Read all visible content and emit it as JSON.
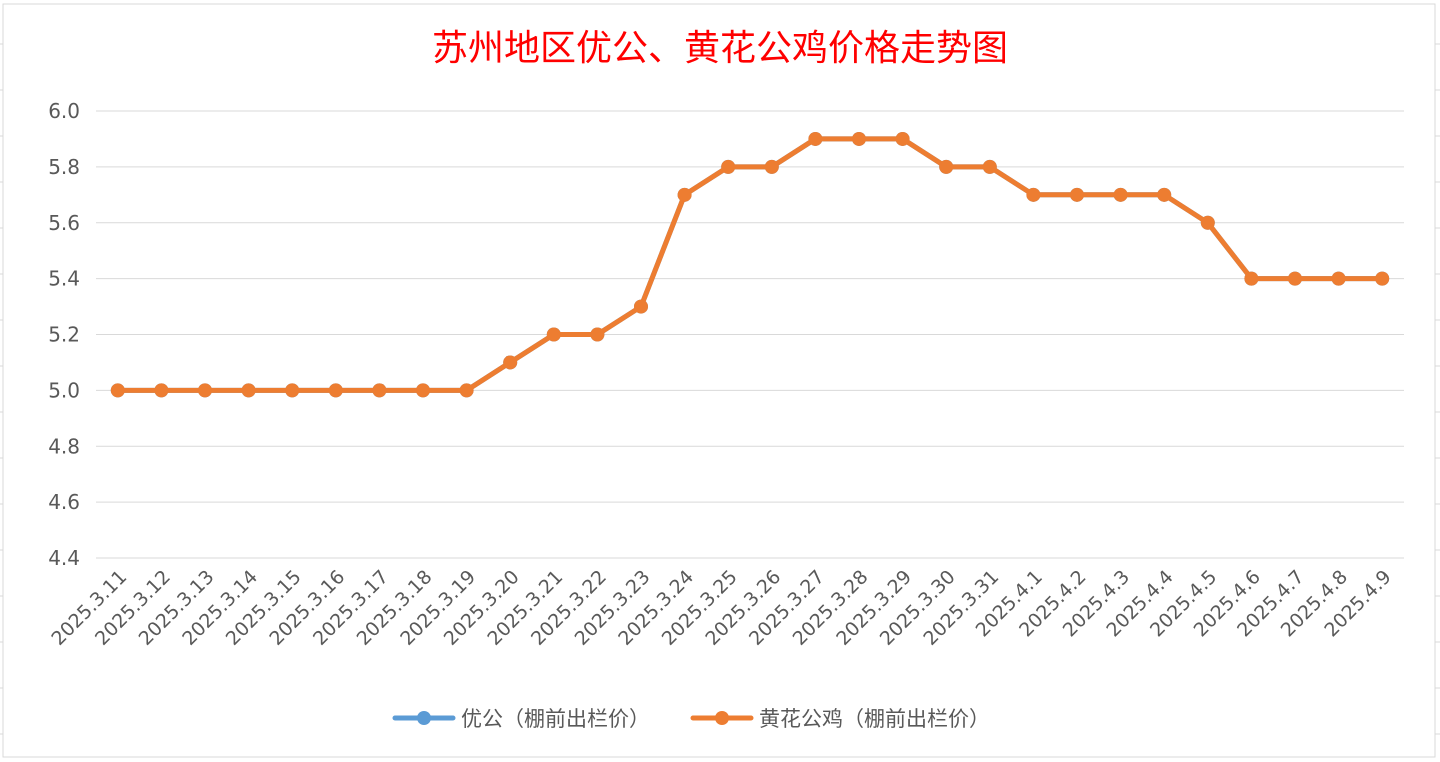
{
  "chart_data": {
    "type": "line",
    "title": "苏州地区优公、黄花公鸡价格走势图",
    "xlabel": "",
    "ylabel": "",
    "ylim": [
      4.4,
      6.0
    ],
    "y_ticks": [
      "4.4",
      "4.6",
      "4.8",
      "5.0",
      "5.2",
      "5.4",
      "5.6",
      "5.8",
      "6.0"
    ],
    "grid": true,
    "legend_position": "bottom",
    "categories": [
      "2025.3.11",
      "2025.3.12",
      "2025.3.13",
      "2025.3.14",
      "2025.3.15",
      "2025.3.16",
      "2025.3.17",
      "2025.3.18",
      "2025.3.19",
      "2025.3.20",
      "2025.3.21",
      "2025.3.22",
      "2025.3.23",
      "2025.3.24",
      "2025.3.25",
      "2025.3.26",
      "2025.3.27",
      "2025.3.28",
      "2025.3.29",
      "2025.3.30",
      "2025.3.31",
      "2025.4.1",
      "2025.4.2",
      "2025.4.3",
      "2025.4.4",
      "2025.4.5",
      "2025.4.6",
      "2025.4.7",
      "2025.4.8",
      "2025.4.9"
    ],
    "series": [
      {
        "name": "优公（棚前出栏价）",
        "color": "#5b9bd5",
        "values": [
          5.0,
          5.0,
          5.0,
          5.0,
          5.0,
          5.0,
          5.0,
          5.0,
          5.0,
          5.1,
          5.2,
          5.2,
          5.3,
          5.7,
          5.8,
          5.8,
          5.9,
          5.9,
          5.9,
          5.8,
          5.8,
          5.7,
          5.7,
          5.7,
          5.7,
          5.6,
          5.4,
          5.4,
          5.4,
          5.4
        ]
      },
      {
        "name": "黄花公鸡（棚前出栏价）",
        "color": "#ed7d31",
        "values": [
          5.0,
          5.0,
          5.0,
          5.0,
          5.0,
          5.0,
          5.0,
          5.0,
          5.0,
          5.1,
          5.2,
          5.2,
          5.3,
          5.7,
          5.8,
          5.8,
          5.9,
          5.9,
          5.9,
          5.8,
          5.8,
          5.7,
          5.7,
          5.7,
          5.7,
          5.6,
          5.4,
          5.4,
          5.4,
          5.4
        ]
      }
    ]
  }
}
